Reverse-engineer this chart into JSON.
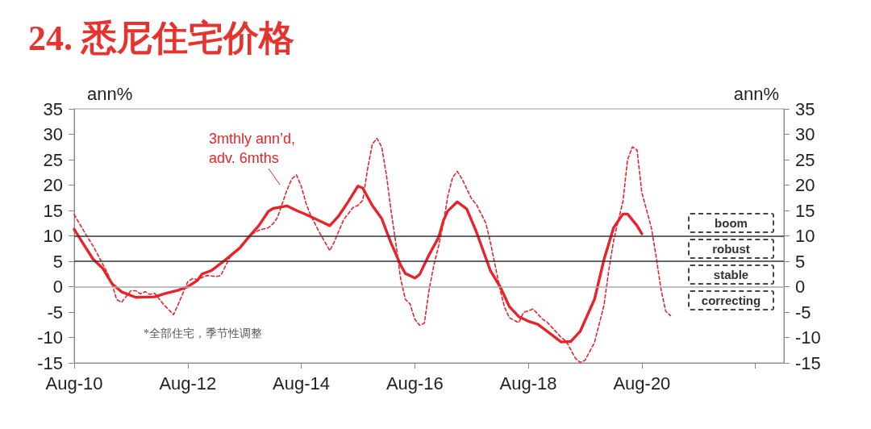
{
  "chart_data": {
    "type": "line",
    "title": "24. 悉尼住宅价格",
    "ylabel": "ann%",
    "y2label": "ann%",
    "xlim": [
      "2010-08",
      "2023-02"
    ],
    "xticks": [
      {
        "value": "2010-08",
        "label": "Aug-10"
      },
      {
        "value": "2012-08",
        "label": "Aug-12"
      },
      {
        "value": "2014-08",
        "label": "Aug-14"
      },
      {
        "value": "2016-08",
        "label": "Aug-16"
      },
      {
        "value": "2018-08",
        "label": "Aug-18"
      },
      {
        "value": "2020-08",
        "label": "Aug-20"
      },
      {
        "value": "2022-08",
        "label": null
      }
    ],
    "ylim": [
      -15,
      35
    ],
    "yticks": [
      -15,
      -10,
      -5,
      0,
      5,
      10,
      15,
      20,
      25,
      30,
      35
    ],
    "y2lim": [
      -15,
      35
    ],
    "y2ticks": [
      -15,
      -10,
      -5,
      0,
      5,
      10,
      15,
      20,
      25,
      30,
      35
    ],
    "series": [
      {
        "color": "#e8232b",
        "line_style": "solid",
        "x": [
          "2010-08",
          "2010-10",
          "2010-12",
          "2011-02",
          "2011-04",
          "2011-06",
          "2011-09",
          "2012-01",
          "2012-03",
          "2012-06",
          "2012-08",
          "2012-10",
          "2012-11",
          "2013-01",
          "2013-04",
          "2013-07",
          "2013-09",
          "2013-11",
          "2014-01",
          "2014-02",
          "2014-05",
          "2014-07",
          "2014-09",
          "2014-12",
          "2015-02",
          "2015-04",
          "2015-06",
          "2015-08",
          "2015-09",
          "2015-11",
          "2016-01",
          "2016-03",
          "2016-05",
          "2016-06",
          "2016-08",
          "2016-09",
          "2016-11",
          "2017-01",
          "2017-02",
          "2017-03",
          "2017-05",
          "2017-07",
          "2017-09",
          "2017-12",
          "2018-02",
          "2018-04",
          "2018-06",
          "2018-08",
          "2018-10",
          "2018-12",
          "2019-03",
          "2019-05",
          "2019-07",
          "2019-10",
          "2019-12",
          "2020-02",
          "2020-04",
          "2020-05",
          "2020-07",
          "2020-08"
        ],
        "values": [
          11.3,
          8.3,
          5.4,
          3.6,
          0.6,
          -1.0,
          -2.1,
          -2.0,
          -1.4,
          -0.7,
          0.0,
          1.2,
          2.5,
          3.2,
          5.3,
          7.6,
          9.9,
          12.0,
          14.8,
          15.4,
          15.9,
          15.0,
          14.2,
          12.9,
          12.0,
          14.0,
          16.8,
          19.8,
          19.4,
          16.0,
          13.4,
          8.6,
          4.3,
          2.6,
          1.7,
          2.4,
          6.3,
          9.7,
          13.0,
          14.9,
          16.7,
          15.3,
          10.8,
          3.1,
          0.0,
          -3.9,
          -5.9,
          -6.8,
          -7.4,
          -8.8,
          -10.9,
          -10.8,
          -8.8,
          -2.5,
          5.3,
          11.6,
          14.3,
          14.3,
          12.0,
          10.4
        ]
      },
      {
        "name": "3mthly ann’d,\nadv. 6mths",
        "color": "#e8232b",
        "line_style": "dashed",
        "x": [
          "2010-08",
          "2010-10",
          "2010-12",
          "2011-03",
          "2011-04",
          "2011-05",
          "2011-06",
          "2011-08",
          "2011-09",
          "2011-10",
          "2011-11",
          "2011-12",
          "2012-01",
          "2012-03",
          "2012-05",
          "2012-06",
          "2012-08",
          "2012-09",
          "2012-10",
          "2012-12",
          "2013-02",
          "2013-03",
          "2013-05",
          "2013-07",
          "2013-09",
          "2013-11",
          "2014-01",
          "2014-02",
          "2014-03",
          "2014-05",
          "2014-06",
          "2014-07",
          "2014-08",
          "2014-09",
          "2014-10",
          "2014-12",
          "2015-02",
          "2015-03",
          "2015-05",
          "2015-07",
          "2015-08",
          "2015-09",
          "2015-10",
          "2015-11",
          "2015-12",
          "2016-01",
          "2016-02",
          "2016-03",
          "2016-04",
          "2016-05",
          "2016-06",
          "2016-07",
          "2016-08",
          "2016-09",
          "2016-10",
          "2016-11",
          "2016-12",
          "2017-01",
          "2017-02",
          "2017-03",
          "2017-04",
          "2017-05",
          "2017-06",
          "2017-08",
          "2017-09",
          "2017-11",
          "2017-12",
          "2018-01",
          "2018-02",
          "2018-03",
          "2018-04",
          "2018-06",
          "2018-07",
          "2018-09",
          "2018-11",
          "2018-12",
          "2019-03",
          "2019-04",
          "2019-06",
          "2019-07",
          "2019-08",
          "2019-10",
          "2019-12",
          "2020-01",
          "2020-02",
          "2020-03",
          "2020-04",
          "2020-05",
          "2020-06",
          "2020-07",
          "2020-08",
          "2020-09",
          "2020-10",
          "2020-11",
          "2020-12",
          "2021-01",
          "2021-02"
        ],
        "values": [
          14.2,
          11.0,
          8.0,
          2.8,
          0.6,
          -2.5,
          -3.1,
          -0.8,
          -0.8,
          -1.4,
          -1.0,
          -1.5,
          -1.3,
          -3.6,
          -5.5,
          -3.4,
          1.0,
          1.6,
          1.4,
          2.2,
          2.0,
          2.2,
          5.9,
          7.7,
          10.0,
          11.1,
          11.6,
          12.4,
          13.6,
          19.0,
          21.2,
          22.0,
          19.8,
          16.4,
          14.0,
          10.4,
          7.1,
          8.8,
          13.2,
          15.6,
          16.0,
          17.0,
          23.0,
          28.0,
          29.2,
          27.5,
          21.8,
          15.0,
          8.5,
          1.7,
          -2.5,
          -3.4,
          -6.4,
          -7.6,
          -7.2,
          -0.6,
          4.2,
          8.0,
          12.5,
          17.8,
          21.5,
          22.7,
          21.2,
          17.3,
          16.2,
          12.5,
          8.6,
          4.0,
          -0.6,
          -4.0,
          -6.1,
          -7.1,
          -5.1,
          -4.4,
          -6.4,
          -7.0,
          -10.0,
          -10.7,
          -14.1,
          -14.9,
          -14.5,
          -11.0,
          -3.7,
          3.2,
          9.0,
          12.9,
          16.7,
          25.0,
          27.5,
          26.9,
          18.5,
          15.0,
          11.6,
          5.9,
          -0.3,
          -4.8,
          -5.7
        ]
      }
    ],
    "ref_lines": [
      {
        "axis": "y",
        "value": 10,
        "color": "#333333"
      },
      {
        "axis": "y",
        "value": 5,
        "color": "#333333"
      },
      {
        "axis": "y",
        "value": 0,
        "color": "#aaaaaa"
      }
    ],
    "annotations": [
      "*全部住宅，季节性调整",
      "boom",
      "robust",
      "stable",
      "correcting"
    ]
  }
}
